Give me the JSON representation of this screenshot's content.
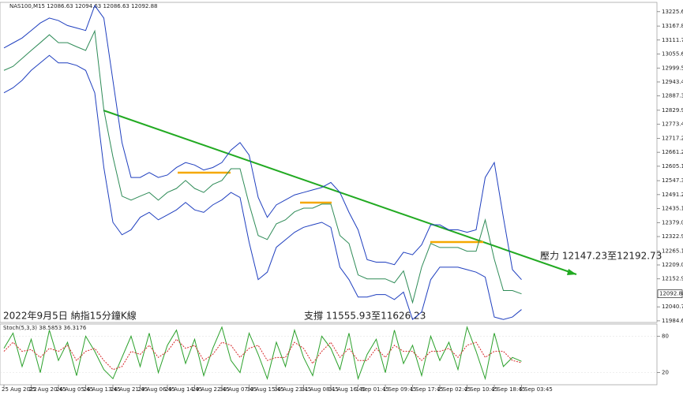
{
  "chart_data": [
    {
      "type": "line",
      "header": "NAS100,M15  12086.63 12094.63 12086.63 12092.88",
      "annotations": [
        "壓力 12147.23至12192.73",
        "支撐 11555.93至11626.23",
        "2022年9月5日 納指15分鐘K線"
      ],
      "current_price": 12092.88,
      "categories": [
        "25 Aug 2022",
        null,
        null,
        "25 Aug 20:45",
        null,
        null,
        "26 Aug 05:45",
        null,
        null,
        "26 Aug 13:45",
        null,
        null,
        "26 Aug 21:45",
        null,
        null,
        "29 Aug 06:45",
        null,
        null,
        "29 Aug 14:45",
        null,
        null,
        "29 Aug 22:45",
        null,
        null,
        "30 Aug 07:45",
        null,
        null,
        "30 Aug 15:45",
        null,
        null,
        "30 Aug 23:45",
        null,
        null,
        "31 Aug 08:45",
        null,
        null,
        "31 Aug 16:45",
        null,
        null,
        "1 Sep 01:45",
        null,
        null,
        "1 Sep 09:45",
        null,
        null,
        "1 Sep 17:45",
        null,
        null,
        "2 Sep 02:45",
        null,
        null,
        "2 Sep 10:45",
        null,
        null,
        "2 Sep 18:45",
        null,
        null,
        "5 Sep 03:45"
      ],
      "ylim": [
        11978,
        13263
      ],
      "yticks": [
        {
          "value": 13225.6,
          "label": "13225.60"
        },
        {
          "value": 13167.8,
          "label": "13167.80"
        },
        13111.75,
        {
          "value": 13055.6,
          "label": "13055.60"
        },
        {
          "value": 12999.5,
          "label": "12999.50"
        },
        12943.45,
        {
          "value": 12887.3,
          "label": "12887.30"
        },
        {
          "value": 12829.9,
          "label": "12829.90"
        },
        {
          "value": 12773.4,
          "label": "12773.40"
        },
        12717.25,
        {
          "value": 12661.2,
          "label": "12661.20"
        },
        {
          "value": 12605.1,
          "label": "12605.10"
        },
        12547.35,
        {
          "value": 12491.2,
          "label": "12491.20"
        },
        {
          "value": 12435.1,
          "label": "12435.10"
        },
        {
          "value": 12379,
          "label": "12379.00"
        },
        {
          "value": 12322.9,
          "label": "12322.90"
        },
        {
          "value": 12265.1,
          "label": "12265.10"
        },
        {
          "value": 12209,
          "label": "12209.00"
        },
        {
          "value": 12152.9,
          "label": "12152.90"
        },
        {
          "value": 12040.7,
          "label": "12040.70"
        },
        {
          "value": 11984.6,
          "label": "11984.60"
        }
      ],
      "series": [
        {
          "color": "#2e8b57",
          "values": [
            12990,
            13006,
            13038,
            13070,
            13101,
            13133,
            13101,
            13101,
            13085,
            13070,
            13148,
            12832,
            12643,
            12485,
            12469,
            12485,
            12500,
            12469,
            12500,
            12516,
            12548,
            12516,
            12500,
            12532,
            12548,
            12595,
            12595,
            12453,
            12327,
            12311,
            12374,
            12390,
            12422,
            12437,
            12437,
            12453,
            12453,
            12327,
            12295,
            12169,
            12153,
            12153,
            12153,
            12137,
            12185,
            12058,
            12200,
            12295,
            12279,
            12279,
            12279,
            12264,
            12264,
            12390,
            12232,
            12106,
            12106,
            12092.88
          ]
        },
        {
          "color": "#1f3fbf",
          "values": [
            13080,
            13100,
            13120,
            13150,
            13180,
            13200,
            13190,
            13170,
            13160,
            13150,
            13250,
            13200,
            12950,
            12700,
            12560,
            12560,
            12580,
            12560,
            12570,
            12600,
            12620,
            12610,
            12590,
            12600,
            12620,
            12670,
            12700,
            12650,
            12480,
            12400,
            12450,
            12470,
            12490,
            12500,
            12510,
            12520,
            12540,
            12500,
            12420,
            12350,
            12230,
            12220,
            12220,
            12210,
            12260,
            12250,
            12290,
            12370,
            12370,
            12350,
            12350,
            12340,
            12350,
            12560,
            12620,
            12400,
            12190,
            12150
          ]
        },
        {
          "color": "#1f3fbf",
          "values": [
            12900,
            12920,
            12950,
            12990,
            13020,
            13050,
            13020,
            13020,
            13010,
            12990,
            12900,
            12600,
            12380,
            12330,
            12350,
            12400,
            12420,
            12390,
            12410,
            12430,
            12460,
            12430,
            12420,
            12450,
            12470,
            12500,
            12480,
            12300,
            12150,
            12180,
            12280,
            12310,
            12340,
            12360,
            12370,
            12380,
            12360,
            12200,
            12150,
            12080,
            12080,
            12090,
            12090,
            12070,
            12100,
            11990,
            12020,
            12150,
            12200,
            12200,
            12200,
            12190,
            12180,
            12160,
            12000,
            11990,
            12000,
            12030
          ]
        }
      ]
    },
    {
      "type": "line",
      "label": "Stoch(5,3,3) 38.5853 36.3176",
      "ylim": [
        0,
        100
      ],
      "yticks": [
        80,
        20
      ],
      "series": [
        {
          "color": "#2aa02a",
          "values": [
            60,
            85,
            30,
            75,
            20,
            90,
            40,
            70,
            15,
            80,
            55,
            25,
            10,
            45,
            80,
            30,
            85,
            20,
            65,
            90,
            35,
            75,
            15,
            60,
            95,
            40,
            20,
            85,
            50,
            10,
            70,
            30,
            90,
            45,
            15,
            80,
            60,
            25,
            85,
            10,
            50,
            75,
            20,
            90,
            35,
            65,
            15,
            80,
            40,
            70,
            25,
            95,
            55,
            10,
            85,
            30,
            45,
            38.5853
          ]
        },
        {
          "color": "#d62728",
          "dashed": true,
          "values": [
            55,
            70,
            55,
            58,
            45,
            60,
            55,
            65,
            40,
            55,
            60,
            40,
            25,
            30,
            55,
            50,
            65,
            45,
            55,
            75,
            60,
            65,
            40,
            50,
            70,
            65,
            45,
            60,
            65,
            40,
            45,
            45,
            70,
            60,
            35,
            55,
            70,
            45,
            60,
            40,
            40,
            60,
            45,
            65,
            55,
            55,
            40,
            55,
            55,
            60,
            45,
            65,
            70,
            45,
            55,
            55,
            40,
            36.3176
          ]
        }
      ]
    }
  ]
}
